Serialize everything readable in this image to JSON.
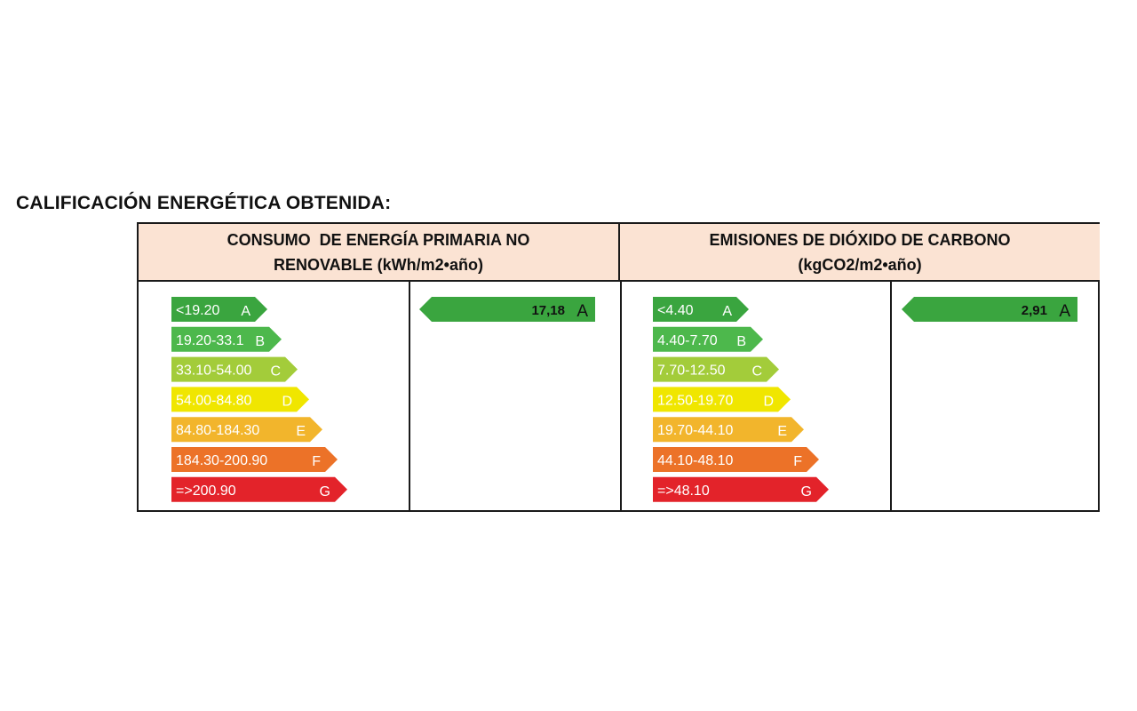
{
  "title": "CALIFICACIÓN ENERGÉTICA OBTENIDA:",
  "colors": {
    "A": "#3aa53f",
    "B": "#4db84c",
    "C": "#a3cc3a",
    "D": "#f0e600",
    "E": "#f2b52c",
    "F": "#ec7228",
    "G": "#e3232a",
    "result": "#3aa53f"
  },
  "chart_data": [
    {
      "type": "bar",
      "header_line1": "CONSUMO  DE ENERGÍA PRIMARIA NO",
      "header_line2": "RENOVABLE (kWh/m2•año)",
      "categories": [
        "A",
        "B",
        "C",
        "D",
        "E",
        "F",
        "G"
      ],
      "ranges": [
        "<19.20",
        "19.20-33.1",
        "33.10-54.00",
        "54.00-84.80",
        "84.80-184.30",
        "184.30-200.90",
        "=>200.90"
      ],
      "result_value": "17,18",
      "result_class": "A"
    },
    {
      "type": "bar",
      "header_line1": "EMISIONES DE DIÓXIDO DE CARBONO",
      "header_line2": "(kgCO2/m2•año)",
      "categories": [
        "A",
        "B",
        "C",
        "D",
        "E",
        "F",
        "G"
      ],
      "ranges": [
        "<4.40",
        "4.40-7.70",
        "7.70-12.50",
        "12.50-19.70",
        "19.70-44.10",
        "44.10-48.10",
        "=>48.10"
      ],
      "result_value": "2,91",
      "result_class": "A"
    }
  ]
}
